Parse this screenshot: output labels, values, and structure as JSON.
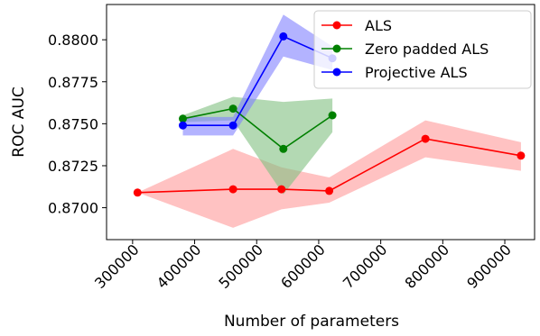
{
  "chart_data": {
    "type": "line",
    "xlabel": "Number of parameters",
    "ylabel": "ROC AUC",
    "xlim": [
      258000,
      948000
    ],
    "ylim": [
      0.8681,
      0.8821
    ],
    "xticks": [
      300000,
      400000,
      500000,
      600000,
      700000,
      800000,
      900000
    ],
    "xtick_labels": [
      "300000",
      "400000",
      "500000",
      "600000",
      "700000",
      "800000",
      "900000"
    ],
    "yticks": [
      0.87,
      0.8725,
      0.875,
      0.8775,
      0.88
    ],
    "ytick_labels": [
      "0.8700",
      "0.8725",
      "0.8750",
      "0.8775",
      "0.8800"
    ],
    "grid": false,
    "legend_position": "top-right",
    "series": [
      {
        "name": "ALS",
        "color": "#ff0000",
        "band_color": "#ff9999",
        "x": [
          308000,
          462000,
          540000,
          617000,
          772000,
          926000
        ],
        "y": [
          0.8709,
          0.8711,
          0.8711,
          0.871,
          0.8741,
          0.8731
        ],
        "lower": [
          0.8709,
          0.8688,
          0.8699,
          0.8703,
          0.873,
          0.8722
        ],
        "upper": [
          0.8709,
          0.8735,
          0.8724,
          0.8718,
          0.8752,
          0.8739
        ]
      },
      {
        "name": "Zero padded ALS",
        "color": "#008000",
        "band_color": "#80c080",
        "x": [
          381000,
          462000,
          543000,
          622000
        ],
        "y": [
          0.8753,
          0.8759,
          0.8735,
          0.8755
        ],
        "lower": [
          0.8751,
          0.8752,
          0.8708,
          0.8745
        ],
        "upper": [
          0.8755,
          0.8766,
          0.8763,
          0.8765
        ]
      },
      {
        "name": "Projective ALS",
        "color": "#0000ff",
        "band_color": "#8080ff",
        "x": [
          381000,
          462000,
          543000,
          622000
        ],
        "y": [
          0.8749,
          0.8749,
          0.8802,
          0.8789
        ],
        "lower": [
          0.8743,
          0.8743,
          0.879,
          0.8782
        ],
        "upper": [
          0.8754,
          0.8754,
          0.8815,
          0.8796
        ]
      }
    ]
  }
}
